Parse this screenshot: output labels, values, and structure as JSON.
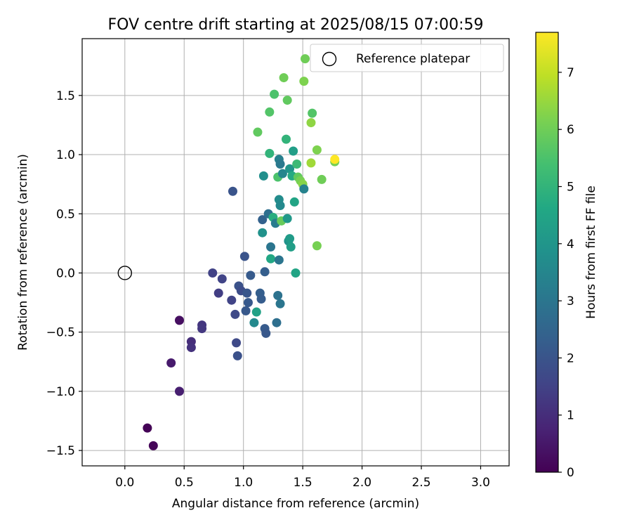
{
  "chart_data": {
    "type": "scatter",
    "title": "FOV centre drift starting at 2025/08/15 07:00:59",
    "xlabel": "Angular distance from reference (arcmin)",
    "ylabel": "Rotation from reference (arcmin)",
    "xlim": [
      -0.36,
      3.24
    ],
    "ylim": [
      -1.63,
      1.98
    ],
    "xticks": [
      0.0,
      0.5,
      1.0,
      1.5,
      2.0,
      2.5,
      3.0
    ],
    "xtick_labels": [
      "0.0",
      "0.5",
      "1.0",
      "1.5",
      "2.0",
      "2.5",
      "3.0"
    ],
    "yticks": [
      -1.5,
      -1.0,
      -0.5,
      0.0,
      0.5,
      1.0,
      1.5
    ],
    "ytick_labels": [
      "−1.5",
      "−1.0",
      "−0.5",
      "0.0",
      "0.5",
      "1.0",
      "1.5"
    ],
    "grid": true,
    "colormap": "viridis",
    "colorbar": {
      "label": "Hours from first FF file",
      "range": [
        0,
        7.7
      ],
      "ticks": [
        0,
        1,
        2,
        3,
        4,
        5,
        6,
        7
      ],
      "tick_labels": [
        "0",
        "1",
        "2",
        "3",
        "4",
        "5",
        "6",
        "7"
      ]
    },
    "legend": {
      "entries": [
        "Reference platepar"
      ],
      "position": "top-right"
    },
    "reference_point": {
      "x": 0.0,
      "y": 0.0
    },
    "points": [
      {
        "x": 0.19,
        "y": -1.31,
        "hours": 0.05
      },
      {
        "x": 0.24,
        "y": -1.46,
        "hours": 0.1
      },
      {
        "x": 0.39,
        "y": -0.76,
        "hours": 0.55
      },
      {
        "x": 0.46,
        "y": -1.0,
        "hours": 0.65
      },
      {
        "x": 0.46,
        "y": -0.4,
        "hours": 0.3
      },
      {
        "x": 0.56,
        "y": -0.58,
        "hours": 1.0
      },
      {
        "x": 0.56,
        "y": -0.63,
        "hours": 1.1
      },
      {
        "x": 0.65,
        "y": -0.44,
        "hours": 1.2
      },
      {
        "x": 0.65,
        "y": -0.47,
        "hours": 1.25
      },
      {
        "x": 0.74,
        "y": 0.0,
        "hours": 1.5
      },
      {
        "x": 0.79,
        "y": -0.17,
        "hours": 1.4
      },
      {
        "x": 0.82,
        "y": -0.05,
        "hours": 1.55
      },
      {
        "x": 0.9,
        "y": -0.23,
        "hours": 1.55
      },
      {
        "x": 0.91,
        "y": 0.69,
        "hours": 2.0
      },
      {
        "x": 0.93,
        "y": -0.35,
        "hours": 1.7
      },
      {
        "x": 0.94,
        "y": -0.59,
        "hours": 1.7
      },
      {
        "x": 0.95,
        "y": -0.7,
        "hours": 1.9
      },
      {
        "x": 0.96,
        "y": -0.11,
        "hours": 1.95
      },
      {
        "x": 0.98,
        "y": -0.15,
        "hours": 1.8
      },
      {
        "x": 1.01,
        "y": 0.14,
        "hours": 2.0
      },
      {
        "x": 1.02,
        "y": -0.32,
        "hours": 2.1
      },
      {
        "x": 1.03,
        "y": -0.17,
        "hours": 2.05
      },
      {
        "x": 1.04,
        "y": -0.25,
        "hours": 2.15
      },
      {
        "x": 1.06,
        "y": -0.02,
        "hours": 2.2
      },
      {
        "x": 1.09,
        "y": -0.42,
        "hours": 3.6
      },
      {
        "x": 1.11,
        "y": -0.33,
        "hours": 4.4
      },
      {
        "x": 1.14,
        "y": -0.17,
        "hours": 2.3
      },
      {
        "x": 1.15,
        "y": -0.22,
        "hours": 2.25
      },
      {
        "x": 1.16,
        "y": 0.45,
        "hours": 2.4
      },
      {
        "x": 1.16,
        "y": 0.34,
        "hours": 3.9
      },
      {
        "x": 1.17,
        "y": 0.82,
        "hours": 3.8
      },
      {
        "x": 1.18,
        "y": 0.01,
        "hours": 2.3
      },
      {
        "x": 1.18,
        "y": -0.47,
        "hours": 2.2
      },
      {
        "x": 1.19,
        "y": -0.51,
        "hours": 2.1
      },
      {
        "x": 1.21,
        "y": 0.5,
        "hours": 2.8
      },
      {
        "x": 1.12,
        "y": 1.19,
        "hours": 5.8
      },
      {
        "x": 1.22,
        "y": 1.36,
        "hours": 5.6
      },
      {
        "x": 1.22,
        "y": 1.01,
        "hours": 5.0
      },
      {
        "x": 1.23,
        "y": 0.22,
        "hours": 3.0
      },
      {
        "x": 1.23,
        "y": 0.12,
        "hours": 4.6
      },
      {
        "x": 1.25,
        "y": 0.47,
        "hours": 4.8
      },
      {
        "x": 1.26,
        "y": 1.51,
        "hours": 5.5
      },
      {
        "x": 1.27,
        "y": 0.42,
        "hours": 3.2
      },
      {
        "x": 1.28,
        "y": -0.42,
        "hours": 2.8
      },
      {
        "x": 1.29,
        "y": 0.81,
        "hours": 5.5
      },
      {
        "x": 1.29,
        "y": -0.19,
        "hours": 2.9
      },
      {
        "x": 1.3,
        "y": 0.62,
        "hours": 3.7
      },
      {
        "x": 1.3,
        "y": 0.96,
        "hours": 3.3
      },
      {
        "x": 1.3,
        "y": 0.11,
        "hours": 3.0
      },
      {
        "x": 1.31,
        "y": 0.92,
        "hours": 3.1
      },
      {
        "x": 1.31,
        "y": 0.57,
        "hours": 3.6
      },
      {
        "x": 1.31,
        "y": -0.26,
        "hours": 3.0
      },
      {
        "x": 1.32,
        "y": 0.44,
        "hours": 5.9
      },
      {
        "x": 1.33,
        "y": 0.84,
        "hours": 3.5
      },
      {
        "x": 1.34,
        "y": 1.65,
        "hours": 6.0
      },
      {
        "x": 1.36,
        "y": 1.13,
        "hours": 5.0
      },
      {
        "x": 1.37,
        "y": 0.46,
        "hours": 4.1
      },
      {
        "x": 1.37,
        "y": 1.46,
        "hours": 5.8
      },
      {
        "x": 1.38,
        "y": 0.27,
        "hours": 3.9
      },
      {
        "x": 1.39,
        "y": 0.29,
        "hours": 4.2
      },
      {
        "x": 1.39,
        "y": 0.88,
        "hours": 4.0
      },
      {
        "x": 1.4,
        "y": 0.22,
        "hours": 4.3
      },
      {
        "x": 1.41,
        "y": 0.82,
        "hours": 4.7
      },
      {
        "x": 1.42,
        "y": 1.03,
        "hours": 4.3
      },
      {
        "x": 1.43,
        "y": 0.6,
        "hours": 4.5
      },
      {
        "x": 1.44,
        "y": 0.0,
        "hours": 4.5
      },
      {
        "x": 1.45,
        "y": 0.92,
        "hours": 5.2
      },
      {
        "x": 1.46,
        "y": 0.81,
        "hours": 5.8
      },
      {
        "x": 1.48,
        "y": 0.78,
        "hours": 6.1
      },
      {
        "x": 1.5,
        "y": 0.75,
        "hours": 6.3
      },
      {
        "x": 1.51,
        "y": 0.71,
        "hours": 3.4
      },
      {
        "x": 1.51,
        "y": 1.62,
        "hours": 6.2
      },
      {
        "x": 1.52,
        "y": 1.81,
        "hours": 6.0
      },
      {
        "x": 1.57,
        "y": 1.27,
        "hours": 6.4
      },
      {
        "x": 1.57,
        "y": 0.93,
        "hours": 6.6
      },
      {
        "x": 1.58,
        "y": 1.35,
        "hours": 5.6
      },
      {
        "x": 1.62,
        "y": 0.23,
        "hours": 6.1
      },
      {
        "x": 1.62,
        "y": 1.04,
        "hours": 6.2
      },
      {
        "x": 1.66,
        "y": 0.79,
        "hours": 6.0
      },
      {
        "x": 1.77,
        "y": 0.94,
        "hours": 6.1
      },
      {
        "x": 1.77,
        "y": 0.96,
        "hours": 7.7
      }
    ]
  }
}
